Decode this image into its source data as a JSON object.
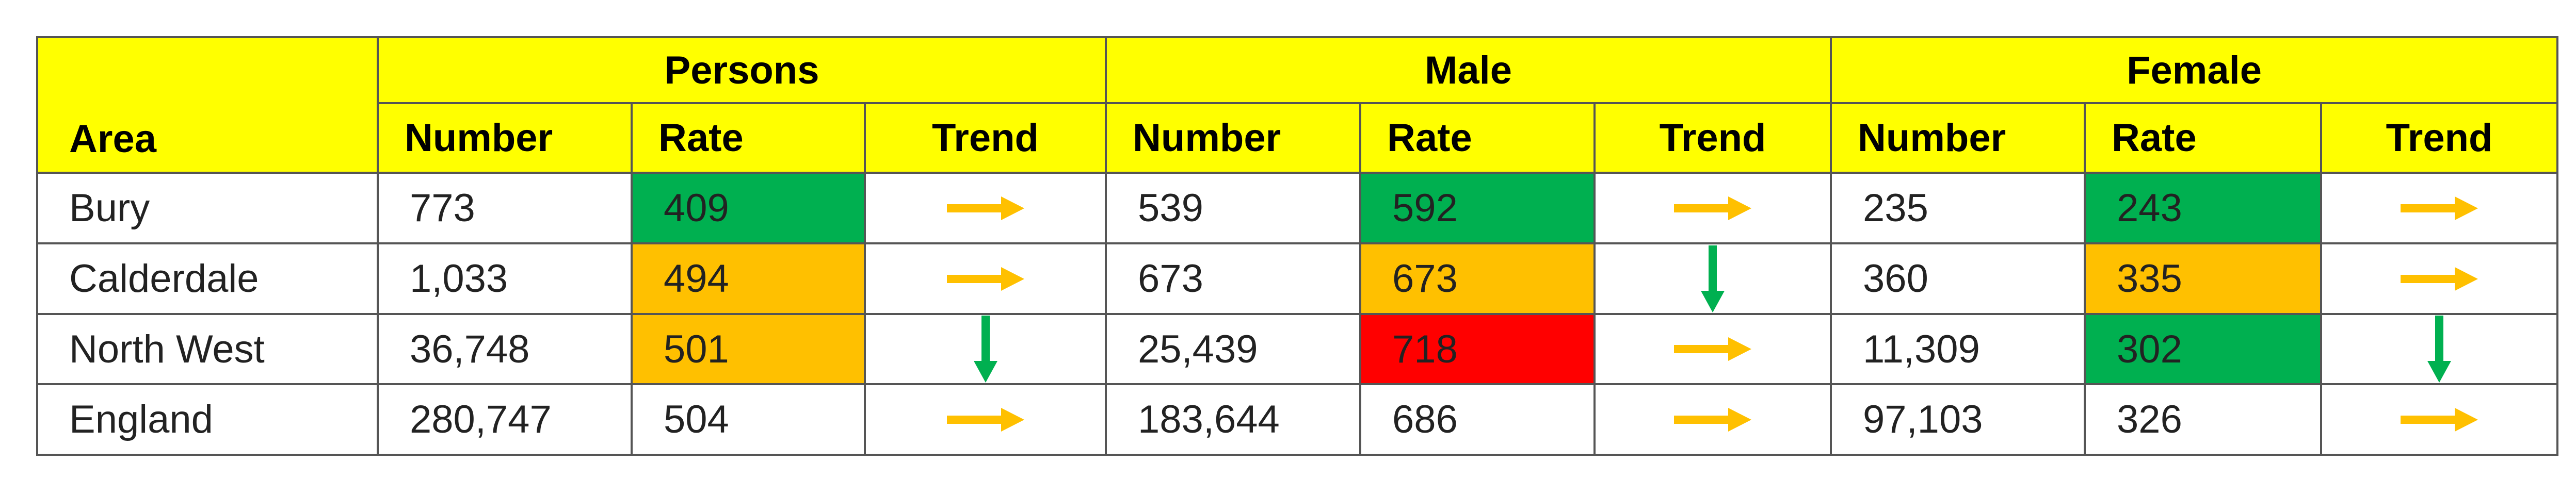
{
  "header": {
    "area": "Area",
    "groups": [
      "Persons",
      "Male",
      "Female"
    ],
    "columns": [
      "Number",
      "Rate",
      "Trend",
      "Number",
      "Rate",
      "Trend",
      "Number",
      "Rate",
      "Trend"
    ]
  },
  "rows": [
    {
      "area": "Bury",
      "values": [
        "773",
        "409",
        "539",
        "592",
        "235",
        "243"
      ]
    },
    {
      "area": "Calderdale",
      "values": [
        "1,033",
        "494",
        "673",
        "673",
        "360",
        "335"
      ]
    },
    {
      "area": "North West",
      "values": [
        "36,748",
        "501",
        "25,439",
        "718",
        "11,309",
        "302"
      ]
    },
    {
      "area": "England",
      "values": [
        "280,747",
        "504",
        "183,644",
        "686",
        "97,103",
        "326"
      ]
    }
  ]
}
